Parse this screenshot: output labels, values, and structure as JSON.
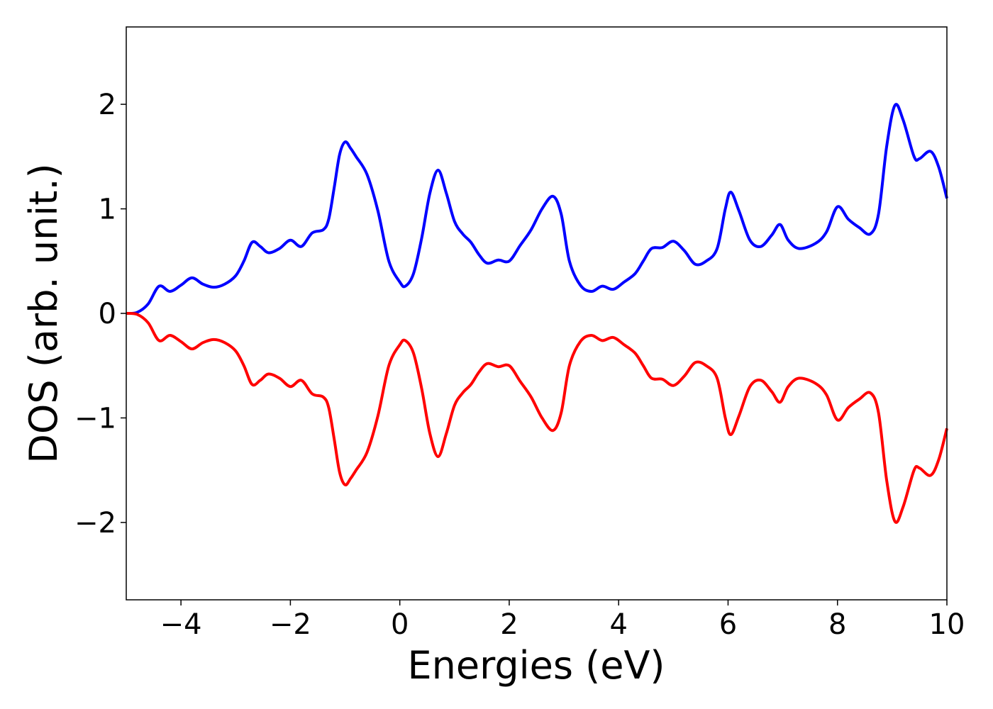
{
  "chart_data": {
    "type": "line",
    "x_label": "Energies (eV)",
    "y_label": "DOS (arb. unit.)",
    "x": [
      -5,
      -4.8,
      -4.6,
      -4.4,
      -4.2,
      -4,
      -3.8,
      -3.6,
      -3.4,
      -3.2,
      -3,
      -2.85,
      -2.7,
      -2.55,
      -2.4,
      -2.2,
      -2,
      -1.8,
      -1.6,
      -1.4,
      -1.3,
      -1.2,
      -1.1,
      -1,
      -0.9,
      -0.8,
      -0.6,
      -0.4,
      -0.2,
      0,
      0.1,
      0.25,
      0.4,
      0.55,
      0.7,
      0.85,
      1,
      1.15,
      1.3,
      1.45,
      1.6,
      1.8,
      2,
      2.2,
      2.4,
      2.6,
      2.8,
      2.95,
      3.1,
      3.3,
      3.5,
      3.7,
      3.9,
      4.1,
      4.3,
      4.45,
      4.6,
      4.8,
      5,
      5.2,
      5.4,
      5.6,
      5.8,
      5.95,
      6.05,
      6.2,
      6.4,
      6.6,
      6.8,
      6.95,
      7.1,
      7.3,
      7.6,
      7.8,
      8,
      8.2,
      8.4,
      8.6,
      8.75,
      8.9,
      9.05,
      9.2,
      9.4,
      9.5,
      9.7,
      9.85,
      10
    ],
    "series": [
      {
        "color": "#0000ff",
        "values": [
          0,
          0.01,
          0.09,
          0.26,
          0.21,
          0.27,
          0.34,
          0.28,
          0.25,
          0.28,
          0.36,
          0.5,
          0.68,
          0.64,
          0.58,
          0.62,
          0.7,
          0.64,
          0.77,
          0.8,
          0.9,
          1.2,
          1.52,
          1.64,
          1.58,
          1.5,
          1.33,
          0.98,
          0.5,
          0.3,
          0.26,
          0.38,
          0.72,
          1.15,
          1.37,
          1.15,
          0.88,
          0.76,
          0.68,
          0.56,
          0.48,
          0.51,
          0.5,
          0.65,
          0.8,
          1.0,
          1.12,
          0.95,
          0.5,
          0.27,
          0.21,
          0.26,
          0.23,
          0.3,
          0.38,
          0.5,
          0.62,
          0.63,
          0.69,
          0.6,
          0.47,
          0.5,
          0.62,
          1.0,
          1.16,
          0.98,
          0.7,
          0.64,
          0.75,
          0.85,
          0.7,
          0.62,
          0.67,
          0.78,
          1.02,
          0.9,
          0.82,
          0.76,
          0.95,
          1.6,
          1.99,
          1.85,
          1.5,
          1.48,
          1.55,
          1.4,
          1.1
        ]
      },
      {
        "color": "#ff0000",
        "values": [
          0,
          -0.01,
          -0.09,
          -0.26,
          -0.21,
          -0.27,
          -0.34,
          -0.28,
          -0.25,
          -0.28,
          -0.36,
          -0.5,
          -0.68,
          -0.64,
          -0.58,
          -0.62,
          -0.7,
          -0.64,
          -0.77,
          -0.8,
          -0.9,
          -1.2,
          -1.52,
          -1.64,
          -1.58,
          -1.5,
          -1.33,
          -0.98,
          -0.5,
          -0.3,
          -0.26,
          -0.38,
          -0.72,
          -1.15,
          -1.37,
          -1.15,
          -0.88,
          -0.76,
          -0.68,
          -0.56,
          -0.48,
          -0.51,
          -0.5,
          -0.65,
          -0.8,
          -1.0,
          -1.12,
          -0.95,
          -0.5,
          -0.27,
          -0.21,
          -0.26,
          -0.23,
          -0.3,
          -0.38,
          -0.5,
          -0.62,
          -0.63,
          -0.69,
          -0.6,
          -0.47,
          -0.5,
          -0.62,
          -1.0,
          -1.16,
          -0.98,
          -0.7,
          -0.64,
          -0.75,
          -0.85,
          -0.7,
          -0.62,
          -0.67,
          -0.78,
          -1.02,
          -0.9,
          -0.82,
          -0.76,
          -0.95,
          -1.6,
          -1.99,
          -1.85,
          -1.5,
          -1.48,
          -1.55,
          -1.4,
          -1.1
        ]
      }
    ],
    "xlim": [
      -5,
      10
    ],
    "xticks": [
      {
        "value": -4,
        "label": "−4"
      },
      {
        "value": -2,
        "label": "−2"
      },
      0,
      2,
      4,
      6,
      8,
      10
    ],
    "ylim": [
      -2.74,
      2.74
    ],
    "yticks": [
      {
        "value": -2,
        "label": "−2"
      },
      {
        "value": -1,
        "label": "−1"
      },
      0,
      1,
      2
    ],
    "grid": false
  }
}
